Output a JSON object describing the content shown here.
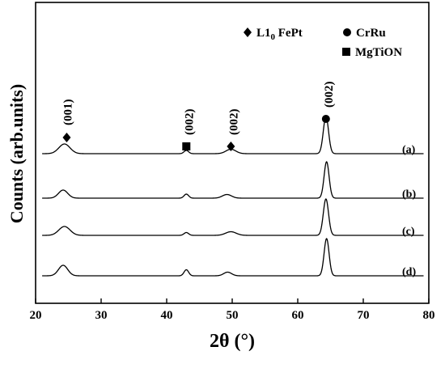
{
  "chart_data": {
    "type": "line",
    "xlabel": "2θ (°)",
    "ylabel": "Counts (arb.units)",
    "xlim": [
      20,
      80
    ],
    "xticks": [
      20,
      30,
      40,
      50,
      60,
      70,
      80
    ],
    "grid": false,
    "legend": [
      {
        "marker": "diamond",
        "label": "L1",
        "subscript": "0",
        "label_rest": " FePt"
      },
      {
        "marker": "circle",
        "label": "CrRu"
      },
      {
        "marker": "square",
        "label": "MgTiON"
      }
    ],
    "peak_labels": [
      {
        "x": 24.5,
        "text": "(001)",
        "marker": "diamond"
      },
      {
        "x": 43.0,
        "text": "(002)",
        "marker": "square"
      },
      {
        "x": 49.8,
        "text": "(002)",
        "marker": "diamond"
      },
      {
        "x": 64.3,
        "text": "(002)",
        "marker": "circle"
      }
    ],
    "series": [
      {
        "name": "(a)",
        "baseline": 0.0,
        "peaks": [
          [
            24.4,
            1.2,
            0.85
          ],
          [
            43.0,
            0.4,
            0.35
          ],
          [
            49.8,
            0.55,
            0.75
          ],
          [
            64.3,
            4.6,
            0.4
          ]
        ]
      },
      {
        "name": "(b)",
        "baseline": 0.0,
        "peaks": [
          [
            24.2,
            1.0,
            0.7
          ],
          [
            43.0,
            0.5,
            0.35
          ],
          [
            49.2,
            0.45,
            0.7
          ],
          [
            64.4,
            4.5,
            0.38
          ]
        ]
      },
      {
        "name": "(c)",
        "baseline": 0.0,
        "peaks": [
          [
            24.4,
            1.1,
            0.85
          ],
          [
            43.0,
            0.35,
            0.35
          ],
          [
            49.8,
            0.45,
            0.8
          ],
          [
            64.3,
            4.5,
            0.4
          ]
        ]
      },
      {
        "name": "(d)",
        "baseline": 0.0,
        "peaks": [
          [
            24.2,
            1.3,
            0.7
          ],
          [
            43.0,
            0.75,
            0.35
          ],
          [
            49.3,
            0.45,
            0.6
          ],
          [
            64.4,
            4.6,
            0.38
          ]
        ]
      }
    ]
  }
}
